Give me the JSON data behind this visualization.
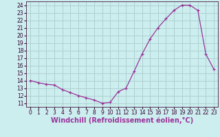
{
  "x": [
    0,
    1,
    2,
    3,
    4,
    5,
    6,
    7,
    8,
    9,
    10,
    11,
    12,
    13,
    14,
    15,
    16,
    17,
    18,
    19,
    20,
    21,
    22,
    23
  ],
  "y": [
    14.0,
    13.7,
    13.5,
    13.4,
    12.8,
    12.4,
    12.0,
    11.7,
    11.4,
    11.0,
    11.1,
    12.5,
    13.0,
    15.2,
    17.5,
    19.5,
    21.0,
    22.2,
    23.3,
    24.0,
    24.0,
    23.3,
    17.5,
    15.5
  ],
  "ylim": [
    10.5,
    24.5
  ],
  "xlim": [
    -0.5,
    23.5
  ],
  "yticks": [
    11,
    12,
    13,
    14,
    15,
    16,
    17,
    18,
    19,
    20,
    21,
    22,
    23,
    24
  ],
  "xticks": [
    0,
    1,
    2,
    3,
    4,
    5,
    6,
    7,
    8,
    9,
    10,
    11,
    12,
    13,
    14,
    15,
    16,
    17,
    18,
    19,
    20,
    21,
    22,
    23
  ],
  "xlabel": "Windchill (Refroidissement éolien,°C)",
  "line_color": "#993399",
  "marker": "+",
  "bg_color": "#cceeee",
  "grid_color": "#aacccc",
  "tick_fontsize": 5.5,
  "xlabel_fontsize": 7.0
}
